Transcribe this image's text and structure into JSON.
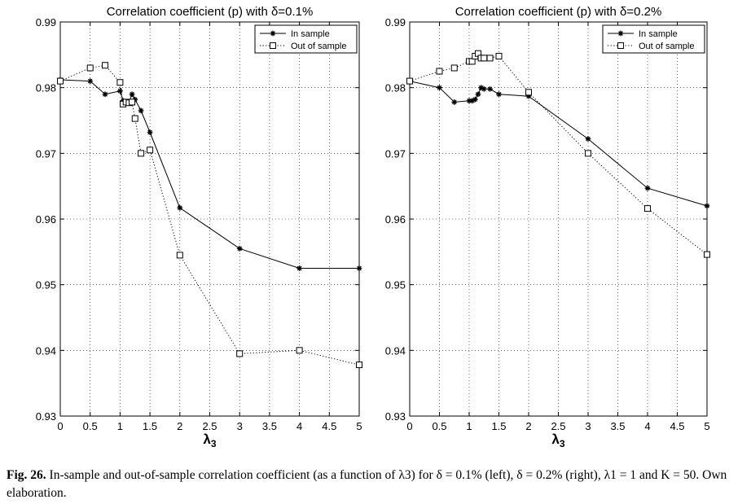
{
  "caption": {
    "label": "Fig. 26.",
    "text": "In-sample and out-of-sample correlation coefficient (as a function of λ3) for δ = 0.1% (left), δ = 0.2% (right), λ1 = 1 and K = 50. Own elaboration."
  },
  "chart_data": [
    {
      "type": "line",
      "title": "Correlation coefficient (p) with δ=0.1%",
      "xlabel": "λ3",
      "ylabel": "",
      "xlim": [
        0,
        5
      ],
      "ylim": [
        0.93,
        0.99
      ],
      "xticks": [
        0,
        0.5,
        1,
        1.5,
        2,
        2.5,
        3,
        3.5,
        4,
        4.5,
        5
      ],
      "xtick_labels": [
        "0",
        "0.5",
        "1",
        "1.5",
        "2",
        "2.5",
        "3",
        "3.5",
        "4",
        "4.5",
        "5"
      ],
      "yticks": [
        0.93,
        0.94,
        0.95,
        0.96,
        0.97,
        0.98,
        0.99
      ],
      "ytick_labels": [
        "0.93",
        "0.94",
        "0.95",
        "0.96",
        "0.97",
        "0.98",
        "0.99"
      ],
      "grid": true,
      "legend_position": "top-right",
      "series": [
        {
          "name": "In sample",
          "style": "solid-star",
          "color": "#000000",
          "x": [
            0,
            0.5,
            0.75,
            1.0,
            1.05,
            1.1,
            1.15,
            1.2,
            1.25,
            1.35,
            1.5,
            2,
            3,
            4,
            5
          ],
          "y": [
            0.9812,
            0.981,
            0.979,
            0.9795,
            0.978,
            0.9778,
            0.9778,
            0.979,
            0.9782,
            0.9765,
            0.9732,
            0.9617,
            0.9555,
            0.9525,
            0.9525
          ]
        },
        {
          "name": "Out of sample",
          "style": "dotted-square",
          "color": "#000000",
          "x": [
            0,
            0.5,
            0.75,
            1.0,
            1.05,
            1.1,
            1.15,
            1.2,
            1.25,
            1.35,
            1.5,
            2,
            3,
            4,
            5
          ],
          "y": [
            0.981,
            0.983,
            0.9834,
            0.9808,
            0.9775,
            0.9778,
            0.9777,
            0.9778,
            0.9753,
            0.97,
            0.9705,
            0.9545,
            0.9395,
            0.94,
            0.9378
          ]
        }
      ]
    },
    {
      "type": "line",
      "title": "Correlation coefficient (p) with δ=0.2%",
      "xlabel": "λ3",
      "ylabel": "",
      "xlim": [
        0,
        5
      ],
      "ylim": [
        0.93,
        0.99
      ],
      "xticks": [
        0,
        0.5,
        1,
        1.5,
        2,
        2.5,
        3,
        3.5,
        4,
        4.5,
        5
      ],
      "xtick_labels": [
        "0",
        "0.5",
        "1",
        "1.5",
        "2",
        "2.5",
        "3",
        "3.5",
        "4",
        "4.5",
        "5"
      ],
      "yticks": [
        0.93,
        0.94,
        0.95,
        0.96,
        0.97,
        0.98,
        0.99
      ],
      "ytick_labels": [
        "0.93",
        "0.94",
        "0.95",
        "0.96",
        "0.97",
        "0.98",
        "0.99"
      ],
      "grid": true,
      "legend_position": "top-right",
      "series": [
        {
          "name": "In sample",
          "style": "solid-star",
          "color": "#000000",
          "x": [
            0,
            0.5,
            0.75,
            1.0,
            1.05,
            1.1,
            1.15,
            1.2,
            1.25,
            1.35,
            1.5,
            2,
            3,
            4,
            5
          ],
          "y": [
            0.981,
            0.98,
            0.9778,
            0.978,
            0.978,
            0.9782,
            0.979,
            0.98,
            0.9798,
            0.9798,
            0.979,
            0.9787,
            0.9722,
            0.9647,
            0.962
          ]
        },
        {
          "name": "Out of sample",
          "style": "dotted-square",
          "color": "#000000",
          "x": [
            0,
            0.5,
            0.75,
            1.0,
            1.05,
            1.1,
            1.15,
            1.2,
            1.25,
            1.35,
            1.5,
            2,
            3,
            4,
            5
          ],
          "y": [
            0.981,
            0.9825,
            0.983,
            0.984,
            0.984,
            0.9848,
            0.9852,
            0.9845,
            0.9845,
            0.9845,
            0.9848,
            0.9793,
            0.97,
            0.9616,
            0.9546
          ]
        }
      ]
    }
  ]
}
